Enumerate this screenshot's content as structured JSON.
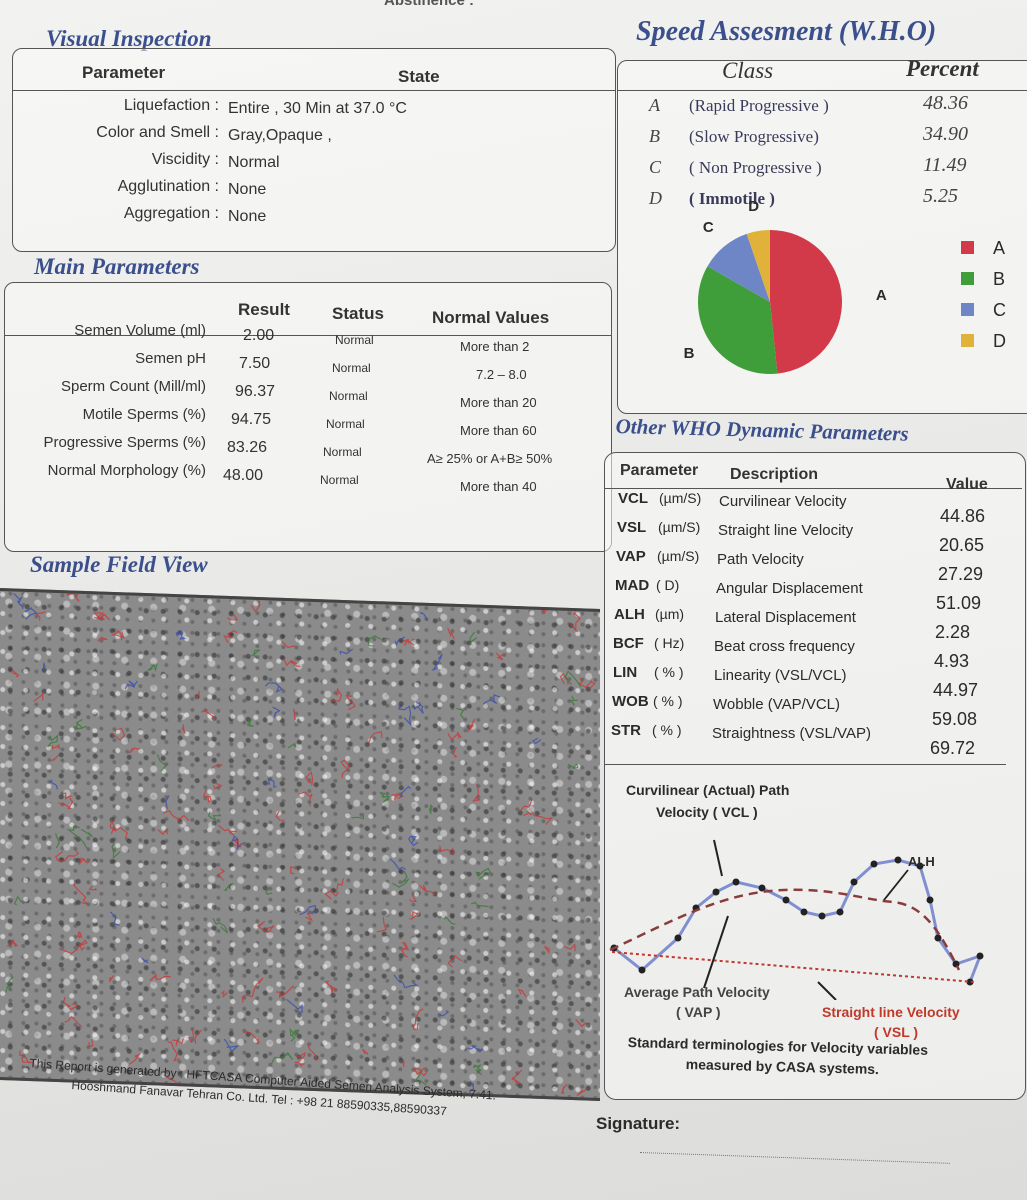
{
  "top_cut_text": "Abstinence :",
  "visual": {
    "title": "Visual Inspection",
    "col_parameter": "Parameter",
    "col_state": "State",
    "rows": [
      {
        "label": "Liquefaction :",
        "value": "Entire , 30  Min at  37.0 °C"
      },
      {
        "label": "Color and Smell :",
        "value": "Gray,Opaque  ,"
      },
      {
        "label": "Viscidity :",
        "value": "Normal"
      },
      {
        "label": "Agglutination :",
        "value": "None"
      },
      {
        "label": "Aggregation :",
        "value": "None"
      }
    ]
  },
  "main": {
    "title": "Main Parameters",
    "col_result": "Result",
    "col_status": "Status",
    "col_normal": "Normal Values",
    "rows": [
      {
        "label": "Semen Volume (ml)",
        "result": "2.00",
        "status": "Normal",
        "normal": "More than  2"
      },
      {
        "label": "Semen pH",
        "result": "7.50",
        "status": "Normal",
        "normal": "7.2 – 8.0"
      },
      {
        "label": "Sperm Count (Mill/ml)",
        "result": "96.37",
        "status": "Normal",
        "normal": "More than  20"
      },
      {
        "label": "Motile Sperms (%)",
        "result": "94.75",
        "status": "Normal",
        "normal": "More than 60"
      },
      {
        "label": "Progressive Sperms (%)",
        "result": "83.26",
        "status": "Normal",
        "normal": "A≥ 25% or A+B≥ 50%"
      },
      {
        "label": "Normal Morphology (%)",
        "result": "48.00",
        "status": "Normal",
        "normal": "More than  40"
      }
    ]
  },
  "sample": {
    "title": "Sample Field View"
  },
  "speed": {
    "title": "Speed Assesment (W.H.O)",
    "col_class": "Class",
    "col_percent": "Percent",
    "rows": [
      {
        "letter": "A",
        "name": "(Rapid Progressive )",
        "percent": "48.36"
      },
      {
        "letter": "B",
        "name": "(Slow Progressive)",
        "percent": "34.90"
      },
      {
        "letter": "C",
        "name": "( Non Progressive )",
        "percent": "11.49"
      },
      {
        "letter": "D",
        "name": "( Immotile )",
        "percent": "5.25"
      }
    ],
    "legend": [
      {
        "label": "A",
        "color": "#d23a4a"
      },
      {
        "label": "B",
        "color": "#3f9e3a"
      },
      {
        "label": "C",
        "color": "#6f86c6"
      },
      {
        "label": "D",
        "color": "#e0b23a"
      }
    ]
  },
  "chart_data": {
    "type": "pie",
    "categories": [
      "A",
      "B",
      "C",
      "D"
    ],
    "values": [
      48.36,
      34.9,
      11.49,
      5.25
    ],
    "colors": [
      "#d23a4a",
      "#3f9e3a",
      "#6f86c6",
      "#e0b23a"
    ],
    "legend": "right"
  },
  "other": {
    "title": "Other WHO Dynamic Parameters",
    "col_parameter": "Parameter",
    "col_description": "Description",
    "col_value": "Value",
    "rows": [
      {
        "param": "VCL",
        "unit": "(µm/S)",
        "desc": "Curvilinear Velocity",
        "value": "44.86"
      },
      {
        "param": "VSL",
        "unit": "(µm/S)",
        "desc": "Straight line Velocity",
        "value": "20.65"
      },
      {
        "param": "VAP",
        "unit": "(µm/S)",
        "desc": "Path Velocity",
        "value": "27.29"
      },
      {
        "param": "MAD",
        "unit": "( D)",
        "desc": "Angular Displacement",
        "value": "51.09"
      },
      {
        "param": "ALH",
        "unit": "(µm)",
        "desc": "Lateral Displacement",
        "value": "2.28"
      },
      {
        "param": "BCF",
        "unit": "( Hz)",
        "desc": "Beat cross frequency",
        "value": "4.93"
      },
      {
        "param": "LIN",
        "unit": "( % )",
        "desc": "Linearity (VSL/VCL)",
        "value": "44.97"
      },
      {
        "param": "WOB",
        "unit": "( % )",
        "desc": "Wobble  (VAP/VCL)",
        "value": "59.08"
      },
      {
        "param": "STR",
        "unit": "( % )",
        "desc": "Straightness (VSL/VAP)",
        "value": "69.72"
      }
    ]
  },
  "diagram": {
    "vcl_line1": "Curvilinear (Actual) Path",
    "vcl_line2": "Velocity ( VCL )",
    "alh": "ALH",
    "vap_line1": "Average Path Velocity",
    "vap_line2": "( VAP )",
    "vsl_line1": "Straight line Velocity",
    "vsl_line2": "( VSL )",
    "caption1": "Standard terminologies for Velocity variables",
    "caption2": "measured by CASA systems."
  },
  "footer": {
    "line1": "This Report is generated by : HFTCASA Computer Aided Semen Analysis System, 7.41.",
    "line2": "Hooshmand Fanavar Tehran Co. Ltd.   Tel : +98 21 88590335,88590337",
    "signature": "Signature:"
  }
}
